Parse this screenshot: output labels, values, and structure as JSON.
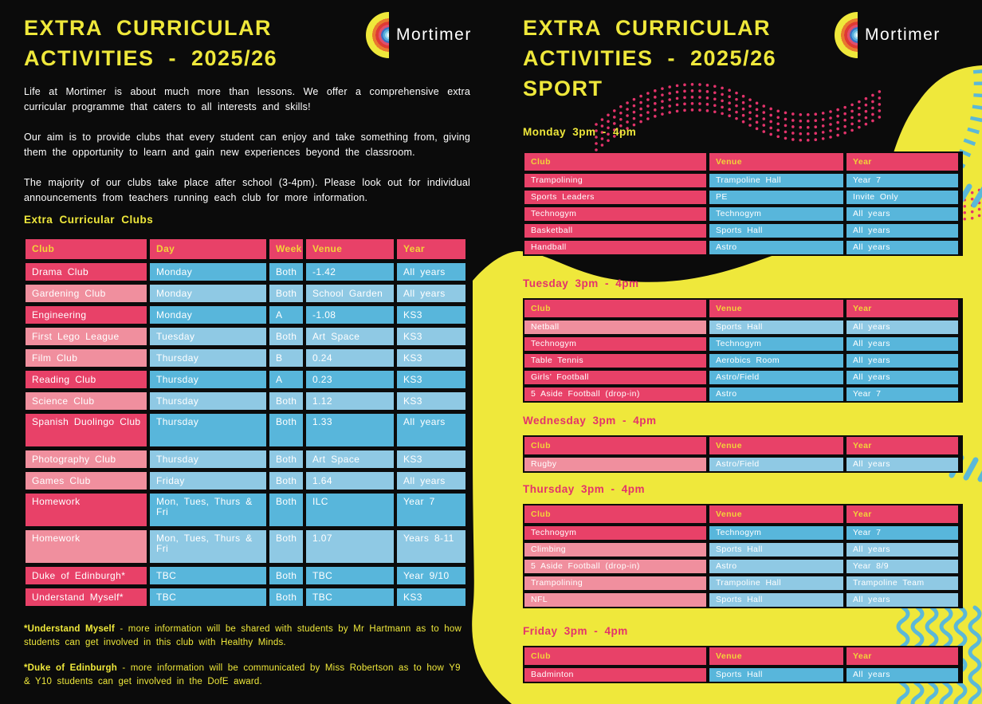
{
  "palette": {
    "background": "#0b0b0b",
    "yellow": "#efe83b",
    "pink_dark": "#e84168",
    "pink_light": "#f08f9e",
    "blue_dark": "#58b6db",
    "blue_light": "#8fc9e4",
    "header_text_yellow": "#f2d439",
    "heading_pink": "#e3336b",
    "white": "#ffffff"
  },
  "left_page": {
    "title_line1": "EXTRA CURRICULAR",
    "title_line2": "ACTIVITIES - 2025/26",
    "logo_text": "Mortimer",
    "paragraphs": [
      "Life at Mortimer is about much more than lessons. We offer a comprehensive extra curricular programme that caters to all interests and skills!",
      "Our aim is to provide clubs that every student can enjoy and take something from, giving them the opportunity to learn and gain new experiences beyond the classroom.",
      "The majority of our clubs take place after school (3-4pm). Please look out for individual announcements from teachers running each club for more information."
    ],
    "clubs_label": "Extra Curricular Clubs",
    "table": {
      "headers": [
        "Club",
        "Day",
        "Week",
        "Venue",
        "Year"
      ],
      "rows": [
        {
          "cells": [
            "Drama Club",
            "Monday",
            "Both",
            "-1.42",
            "All years"
          ],
          "tone": "dark"
        },
        {
          "cells": [
            "Gardening Club",
            "Monday",
            "Both",
            "School Garden",
            "All years"
          ],
          "tone": "light"
        },
        {
          "cells": [
            "Engineering",
            "Monday",
            "A",
            "-1.08",
            "KS3"
          ],
          "tone": "dark"
        },
        {
          "cells": [
            "First Lego League",
            "Tuesday",
            "Both",
            "Art Space",
            "KS3"
          ],
          "tone": "light"
        },
        {
          "cells": [
            "Film Club",
            "Thursday",
            "B",
            "0.24",
            "KS3"
          ],
          "tone": "light"
        },
        {
          "cells": [
            "Reading Club",
            "Thursday",
            "A",
            "0.23",
            "KS3"
          ],
          "tone": "dark"
        },
        {
          "cells": [
            "Science Club",
            "Thursday",
            "Both",
            "1.12",
            "KS3"
          ],
          "tone": "light"
        },
        {
          "cells": [
            "Spanish Duolingo Club",
            "Thursday",
            "Both",
            "1.33",
            "All years"
          ],
          "tone": "dark",
          "tall": true
        },
        {
          "cells": [
            "Photography Club",
            "Thursday",
            "Both",
            "Art Space",
            "KS3"
          ],
          "tone": "light"
        },
        {
          "cells": [
            "Games Club",
            "Friday",
            "Both",
            "1.64",
            "All years"
          ],
          "tone": "light"
        },
        {
          "cells": [
            "Homework",
            "Mon, Tues, Thurs & Fri",
            "Both",
            "ILC",
            "Year 7"
          ],
          "tone": "dark",
          "tall": true
        },
        {
          "cells": [
            "Homework",
            "Mon, Tues, Thurs & Fri",
            "Both",
            "1.07",
            "Years 8-11"
          ],
          "tone": "light",
          "tall": true
        },
        {
          "cells": [
            "Duke of Edinburgh*",
            "TBC",
            "Both",
            "TBC",
            "Year 9/10"
          ],
          "tone": "dark"
        },
        {
          "cells": [
            "Understand Myself*",
            "TBC",
            "Both",
            "TBC",
            "KS3"
          ],
          "tone": "dark"
        }
      ]
    },
    "footnotes": [
      {
        "lead": "*Understand Myself",
        "rest": " - more information will be shared with students by Mr Hartmann as to how students can get involved in this club with Healthy Minds."
      },
      {
        "lead": "*Duke of Edinburgh",
        "rest": " - more information will be communicated by Miss Robertson as to how Y9 & Y10 students can get involved in the DofE award."
      }
    ]
  },
  "right_page": {
    "title_line1": "EXTRA CURRICULAR",
    "title_line2": "ACTIVITIES - 2025/26",
    "title_line3": "SPORT",
    "logo_text": "Mortimer",
    "sections": [
      {
        "heading": "Monday 3pm - 4pm",
        "headers": [
          "Club",
          "Venue",
          "Year"
        ],
        "rows": [
          {
            "cells": [
              "Trampolining",
              "Trampoline Hall",
              "Year 7"
            ],
            "tone": "dark"
          },
          {
            "cells": [
              "Sports Leaders",
              "PE",
              "Invite Only"
            ],
            "tone": "dark"
          },
          {
            "cells": [
              "Technogym",
              "Technogym",
              "All years"
            ],
            "tone": "dark"
          },
          {
            "cells": [
              "Basketball",
              "Sports Hall",
              "All years"
            ],
            "tone": "dark"
          },
          {
            "cells": [
              "Handball",
              "Astro",
              "All years"
            ],
            "tone": "dark"
          }
        ]
      },
      {
        "heading": "Tuesday 3pm - 4pm",
        "headers": [
          "Club",
          "Venue",
          "Year"
        ],
        "rows": [
          {
            "cells": [
              "Netball",
              "Sports Hall",
              "All years"
            ],
            "tone": "light"
          },
          {
            "cells": [
              "Technogym",
              "Technogym",
              "All years"
            ],
            "tone": "dark"
          },
          {
            "cells": [
              "Table Tennis",
              "Aerobics Room",
              "All years"
            ],
            "tone": "dark"
          },
          {
            "cells": [
              "Girls’ Football",
              "Astro/Field",
              "All years"
            ],
            "tone": "dark"
          },
          {
            "cells": [
              "5 Aside Football (drop-in)",
              "Astro",
              "Year 7"
            ],
            "tone": "dark"
          }
        ]
      },
      {
        "heading": "Wednesday 3pm - 4pm",
        "headers": [
          "Club",
          "Venue",
          "Year"
        ],
        "rows": [
          {
            "cells": [
              "Rugby",
              "Astro/Field",
              "All years"
            ],
            "tone": "light"
          }
        ]
      },
      {
        "heading": "Thursday 3pm - 4pm",
        "headers": [
          "Club",
          "Venue",
          "Year"
        ],
        "rows": [
          {
            "cells": [
              "Technogym",
              "Technogym",
              "Year 7"
            ],
            "tone": "dark"
          },
          {
            "cells": [
              "Climbing",
              "Sports Hall",
              "All years"
            ],
            "tone": "light"
          },
          {
            "cells": [
              "5 Aside Football (drop-in)",
              "Astro",
              "Year 8/9"
            ],
            "tone": "light"
          },
          {
            "cells": [
              "Trampolining",
              "Trampoline Hall",
              "Trampoline Team"
            ],
            "tone": "light"
          },
          {
            "cells": [
              "NFL",
              "Sports Hall",
              "All years"
            ],
            "tone": "light"
          }
        ]
      },
      {
        "heading": "Friday 3pm - 4pm",
        "headers": [
          "Club",
          "Venue",
          "Year"
        ],
        "rows": [
          {
            "cells": [
              "Badminton",
              "Sports Hall",
              "All years"
            ],
            "tone": "dark"
          }
        ]
      }
    ]
  }
}
